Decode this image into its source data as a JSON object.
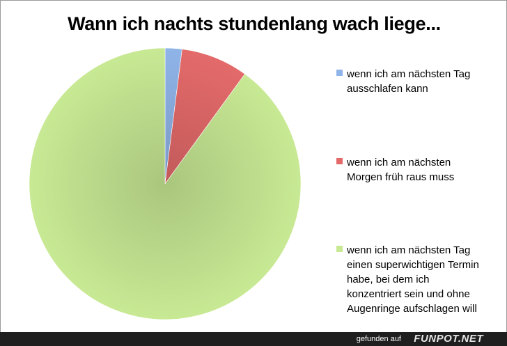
{
  "chart_data": {
    "type": "pie",
    "title": "Wann ich nachts stundenlang wach liege...",
    "start_angle_deg": 0,
    "direction": "clockwise",
    "series": [
      {
        "name": "wenn ich am nächsten Tag ausschlafen kann",
        "label_lines": "wenn ich am nächsten Tag\nausschlafen kann",
        "value": 2,
        "color": "#8fb4e8"
      },
      {
        "name": "wenn ich am nächsten Morgen früh raus muss",
        "label_lines": "wenn ich am nächsten\nMorgen früh raus muss",
        "value": 8,
        "color": "#e46a6a"
      },
      {
        "name": "wenn ich am nächsten Tag einen superwichtigen Termin habe, bei dem ich konzentriert sein und ohne Augenringe aufschlagen will",
        "label_lines": "wenn ich am nächsten Tag\neinen superwichtigen Termin\nhabe, bei dem ich\nkonzentriert sein und ohne\nAugenringe aufschlagen will",
        "value": 90,
        "color": "#c8e994"
      }
    ],
    "legend_position": "right"
  },
  "footer": {
    "found_text": "gefunden auf",
    "brand": "FUNPOT.NET"
  }
}
